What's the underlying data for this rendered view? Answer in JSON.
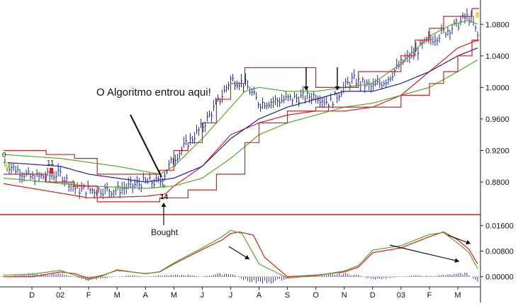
{
  "chart_data": {
    "type": "line",
    "title": "",
    "price_axis": {
      "ticks": [
        "1.0800",
        "1.0400",
        "1.0000",
        "0.9600",
        "0.9200",
        "0.8800"
      ],
      "tick_values": [
        1.08,
        1.04,
        1.0,
        0.96,
        0.92,
        0.88
      ],
      "ylim": [
        0.845,
        1.1
      ]
    },
    "indicator_axis": {
      "ticks": [
        "0.01600",
        "0.00800",
        "0.00000"
      ],
      "tick_values": [
        0.016,
        0.008,
        0.0
      ],
      "ylim": [
        -0.0025,
        0.0185
      ]
    },
    "x_axis": {
      "ticks": [
        "D",
        "02",
        "F",
        "M",
        "A",
        "M",
        "J",
        "J",
        "A",
        "S",
        "O",
        "N",
        "D",
        "03",
        "F",
        "M"
      ],
      "months": [
        0,
        1,
        2,
        3,
        4,
        5,
        6,
        7,
        8,
        9,
        10,
        11,
        12,
        13,
        14,
        15
      ],
      "xlim": [
        -1,
        15.8
      ]
    },
    "series": [
      {
        "type": "ohlc",
        "color": "#1c2a8a",
        "anchors_x": [
          -1,
          0,
          1,
          1.6,
          2,
          3,
          4,
          4.5,
          5,
          6,
          6.7,
          7,
          7.5,
          8,
          9,
          10,
          10.5,
          11,
          11.3,
          12,
          12.5,
          13,
          14,
          14.5,
          15,
          15.3,
          15.5,
          15.7
        ],
        "anchors_y": [
          0.905,
          0.885,
          0.89,
          0.87,
          0.87,
          0.87,
          0.88,
          0.88,
          0.91,
          0.95,
          0.99,
          1.01,
          1.005,
          0.98,
          0.985,
          0.99,
          0.98,
          1.0,
          1.01,
          1.0,
          1.01,
          1.03,
          1.06,
          1.07,
          1.08,
          1.09,
          1.085,
          1.065
        ]
      },
      {
        "type": "line",
        "color": "#d42020",
        "anchors_x": [
          -1,
          2,
          4,
          4.7,
          5,
          6,
          7,
          8,
          9,
          10,
          11,
          12,
          13,
          14,
          15,
          15.7
        ],
        "anchors_y": [
          0.878,
          0.86,
          0.862,
          0.865,
          0.875,
          0.9,
          0.94,
          0.955,
          0.965,
          0.97,
          0.97,
          0.975,
          0.99,
          1.02,
          1.05,
          1.06
        ]
      },
      {
        "type": "line",
        "color": "#5aa52a",
        "anchors_x": [
          -1,
          2,
          4,
          5,
          6,
          7,
          8,
          9,
          10,
          11,
          12,
          13,
          14,
          15,
          15.7
        ],
        "anchors_y": [
          0.885,
          0.875,
          0.872,
          0.875,
          0.885,
          0.91,
          0.94,
          0.955,
          0.965,
          0.975,
          0.98,
          0.99,
          1.0,
          1.02,
          1.035
        ]
      },
      {
        "type": "line",
        "color": "#1e1e9a",
        "anchors_x": [
          -1,
          1,
          2,
          4,
          5,
          6,
          7,
          8,
          9,
          10,
          11,
          12,
          13,
          14,
          15,
          15.7
        ],
        "anchors_y": [
          0.905,
          0.9,
          0.89,
          0.88,
          0.885,
          0.9,
          0.935,
          0.96,
          0.975,
          0.985,
          0.995,
          0.995,
          1.005,
          1.02,
          1.04,
          1.05
        ]
      },
      {
        "type": "line",
        "color": "#5aa52a",
        "anchors_x": [
          -1,
          1,
          3,
          4.5,
          5,
          6,
          7,
          7.5,
          8,
          9,
          10,
          11,
          12,
          13,
          14,
          14.8,
          15.4,
          15.7
        ],
        "anchors_y": [
          0.915,
          0.91,
          0.9,
          0.89,
          0.9,
          0.935,
          0.975,
          0.995,
          1.0,
          0.995,
          0.995,
          1.0,
          1.005,
          1.03,
          1.065,
          1.08,
          1.085,
          1.08
        ]
      },
      {
        "type": "step",
        "color": "#d42020",
        "anchors_x": [
          -1,
          0.5,
          1.5,
          2.3,
          3.2,
          4.5,
          5,
          5.5,
          6,
          6.5,
          7,
          7.5,
          8,
          9.5,
          10,
          11,
          11.5,
          12,
          12.5,
          13,
          13.5,
          14,
          14.5,
          15,
          15.5
        ],
        "anchors_y": [
          0.92,
          0.915,
          0.91,
          0.89,
          0.89,
          0.895,
          0.92,
          0.93,
          0.955,
          0.985,
          1.005,
          1.025,
          1.025,
          1.025,
          1.0,
          1.0,
          1.02,
          1.02,
          1.02,
          1.04,
          1.06,
          1.075,
          1.09,
          1.09,
          1.1
        ]
      },
      {
        "type": "step",
        "color": "#d42020",
        "anchors_x": [
          -1,
          0.5,
          1.5,
          2.3,
          4.5,
          5.5,
          6.5,
          7.5,
          8,
          9,
          10,
          11,
          12,
          13,
          14,
          14.5,
          15,
          15.5
        ],
        "anchors_y": [
          0.89,
          0.88,
          0.875,
          0.855,
          0.86,
          0.87,
          0.89,
          0.93,
          0.955,
          0.97,
          0.975,
          0.975,
          0.975,
          0.99,
          1.005,
          1.02,
          1.04,
          1.06
        ]
      }
    ],
    "indicator_series": [
      {
        "type": "histogram",
        "color": "#3a3aa8",
        "anchors_x": [
          -1,
          0,
          0.5,
          1,
          1.5,
          2,
          2.5,
          3,
          3.5,
          4,
          4.5,
          5,
          5.5,
          6,
          6.5,
          7,
          7.5,
          8,
          8.5,
          9,
          9.5,
          10,
          10.5,
          11,
          11.5,
          12,
          12.5,
          13,
          13.5,
          14,
          14.5,
          15,
          15.3,
          15.7
        ],
        "anchors_y": [
          0.0,
          0.001,
          0.0005,
          0.001,
          0.0,
          -0.001,
          -0.0005,
          0.0,
          0.0005,
          0.0,
          0.0004,
          0.0005,
          0.0005,
          0.0,
          0.0008,
          0.001,
          -0.001,
          -0.002,
          -0.0015,
          -0.0005,
          0.0,
          0.0005,
          0.0007,
          0.001,
          0.0005,
          -0.001,
          -0.0005,
          0.0,
          0.0004,
          0.0002,
          0.0005,
          0.0008,
          0.0012,
          -0.0015
        ]
      },
      {
        "type": "line",
        "color": "#d42020",
        "anchors_x": [
          -1,
          0,
          1,
          1.5,
          2,
          2.5,
          3,
          4,
          4.5,
          5,
          6,
          6.7,
          7,
          7.3,
          7.8,
          8.2,
          9,
          10,
          11,
          11.5,
          12,
          13,
          14,
          14.5,
          15,
          15.4,
          15.7
        ],
        "anchors_y": [
          0.0,
          0.0,
          0.0015,
          0.001,
          -0.0005,
          0.0005,
          0.002,
          0.001,
          0.0015,
          0.004,
          0.0085,
          0.0115,
          0.0135,
          0.014,
          0.013,
          0.006,
          0.0,
          0.0005,
          0.0015,
          0.003,
          0.0075,
          0.009,
          0.0125,
          0.014,
          0.0115,
          0.0085,
          0.004
        ]
      },
      {
        "type": "line",
        "color": "#5aa52a",
        "anchors_x": [
          -1,
          0,
          1,
          1.5,
          2,
          2.5,
          3,
          4,
          4.5,
          5,
          6,
          6.7,
          7,
          7.4,
          8,
          9,
          10,
          11,
          11.5,
          12,
          13,
          14,
          14.5,
          15,
          15.4,
          15.7
        ],
        "anchors_y": [
          0.0005,
          0.0008,
          0.002,
          0.0005,
          -0.001,
          0.0003,
          0.0022,
          0.0009,
          0.0016,
          0.0043,
          0.009,
          0.0125,
          0.0145,
          0.0135,
          0.004,
          -0.0004,
          0.0003,
          0.0018,
          0.0035,
          0.0083,
          0.0097,
          0.0132,
          0.0138,
          0.0105,
          0.0075,
          0.0025
        ]
      }
    ],
    "annotations": [
      {
        "text": "O Algoritmo entrou aqui!"
      },
      {
        "text": "Bought"
      },
      {
        "text": "14"
      },
      {
        "text": "11"
      },
      {
        "text": "0"
      }
    ]
  }
}
